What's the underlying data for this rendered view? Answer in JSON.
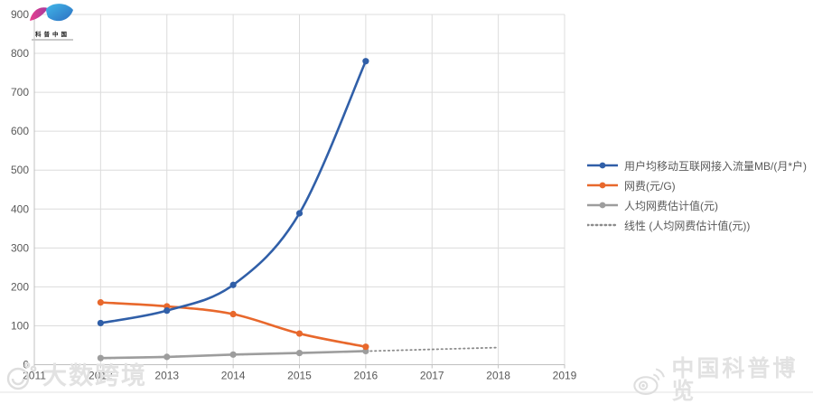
{
  "logo_top_left": {
    "icon": "butterfly-logo",
    "label": "科普中国"
  },
  "watermark_bottom_left": {
    "icon": "smiley-logo",
    "text": "大数跨境"
  },
  "watermark_bottom_right": {
    "icon": "weibo-logo",
    "text": "中国科普博览"
  },
  "chart_data": {
    "type": "line",
    "title": "",
    "xlabel": "",
    "ylabel": "",
    "xlim": [
      2011,
      2019
    ],
    "ylim": [
      0,
      900
    ],
    "x_ticks": [
      2011,
      2012,
      2013,
      2014,
      2015,
      2016,
      2017,
      2018,
      2019
    ],
    "y_ticks": [
      0,
      100,
      200,
      300,
      400,
      500,
      600,
      700,
      800,
      900
    ],
    "grid": true,
    "legend_position": "right",
    "colors": {
      "axis_text": "#595959",
      "gridline": "#dcdcdc",
      "axis_line": "#c0c0c0",
      "background": "#ffffff"
    },
    "series": [
      {
        "name": "用户均移动互联网接入流量MB/(月*户)",
        "color": "#305fa8",
        "style": "solid",
        "marker": "circle",
        "smooth": true,
        "x": [
          2012,
          2013,
          2014,
          2015,
          2016
        ],
        "values": [
          107,
          139,
          205,
          389,
          780
        ]
      },
      {
        "name": "网费(元/G)",
        "color": "#e8682c",
        "style": "solid",
        "marker": "circle",
        "smooth": true,
        "x": [
          2012,
          2013,
          2014,
          2015,
          2016
        ],
        "values": [
          160,
          150,
          130,
          80,
          46
        ]
      },
      {
        "name": "人均网费估计值(元)",
        "color": "#9d9d9d",
        "style": "solid",
        "marker": "circle",
        "smooth": true,
        "x": [
          2012,
          2013,
          2014,
          2015,
          2016
        ],
        "values": [
          17,
          20,
          26,
          30,
          35
        ]
      },
      {
        "name": "线性 (人均网费估计值(元))",
        "color": "#8c8c8c",
        "style": "dotted",
        "marker": "none",
        "smooth": false,
        "x": [
          2012,
          2018
        ],
        "values": [
          16,
          44
        ]
      }
    ]
  }
}
